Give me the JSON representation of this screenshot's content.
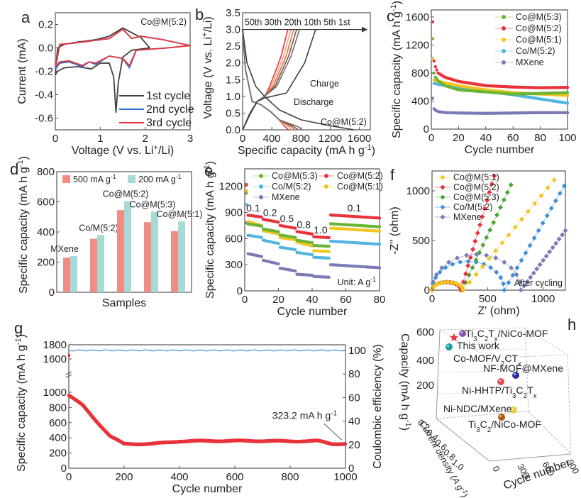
{
  "chart_data": [
    {
      "panel": "a",
      "type": "line",
      "annotation": "Co@M(5:2)",
      "xlabel": "Voltage (V vs. Li+/Li)",
      "ylabel": "Current (mA)",
      "xlim": [
        0,
        3
      ],
      "ylim": [
        -0.7,
        0.3
      ],
      "xticks": [
        "0",
        "1",
        "2",
        "3"
      ],
      "yticks": [
        "0.2",
        "0.0",
        "-0.2",
        "-0.4",
        "-0.6"
      ],
      "series": [
        {
          "name": "1st cycle",
          "color": "#404040",
          "x": [
            0.0,
            0.05,
            0.2,
            0.5,
            0.8,
            1.0,
            1.2,
            1.3,
            1.35,
            1.4,
            1.5,
            1.7,
            2.1,
            2.1,
            1.9,
            1.5,
            1.2,
            0.9,
            0.5,
            0.2,
            0.05,
            0.0
          ],
          "y": [
            -0.23,
            -0.2,
            -0.17,
            -0.16,
            -0.18,
            -0.13,
            -0.13,
            -0.25,
            -0.55,
            -0.3,
            -0.08,
            -0.02,
            0.0,
            0.0,
            0.09,
            0.17,
            0.1,
            0.07,
            0.05,
            0.03,
            0.0,
            -0.23
          ]
        },
        {
          "name": "2nd cycle",
          "color": "#2f6fc9",
          "x": [
            0.0,
            0.1,
            0.3,
            0.6,
            0.75,
            0.9,
            1.2,
            1.5,
            1.65,
            1.8,
            2.5,
            3.0,
            2.4,
            1.9,
            1.7,
            1.5,
            1.2,
            0.8,
            0.4,
            0.1,
            0.0
          ],
          "y": [
            -0.18,
            -0.13,
            -0.12,
            -0.16,
            -0.12,
            -0.14,
            -0.07,
            -0.09,
            -0.17,
            -0.02,
            0.0,
            0.02,
            0.07,
            0.1,
            0.08,
            0.16,
            0.08,
            0.06,
            0.04,
            0.03,
            -0.18
          ]
        },
        {
          "name": "3rd cycle",
          "color": "#e8333a",
          "x": [
            0.0,
            0.1,
            0.3,
            0.6,
            0.75,
            0.9,
            1.2,
            1.5,
            1.65,
            1.8,
            2.5,
            3.0,
            2.4,
            1.9,
            1.7,
            1.5,
            1.2,
            0.8,
            0.4,
            0.1,
            0.0
          ],
          "y": [
            -0.16,
            -0.12,
            -0.11,
            -0.15,
            -0.12,
            -0.13,
            -0.07,
            -0.09,
            -0.15,
            -0.02,
            0.0,
            0.02,
            0.07,
            0.1,
            0.08,
            0.16,
            0.08,
            0.06,
            0.04,
            0.03,
            -0.16
          ]
        }
      ],
      "legend": "bottom-right"
    },
    {
      "panel": "b",
      "type": "line",
      "annotation": "Co@M(5:2)",
      "arrow_label": "50th 30th 20th 10th 5th 1st",
      "charge_label": "Charge",
      "discharge_label": "Discharge",
      "xlabel": "Specific capacity (mA h g-1)",
      "ylabel": "Voltage (V vs. Li+/Li)",
      "xlim": [
        0,
        1750
      ],
      "ylim": [
        0,
        3.5
      ],
      "xticks": [
        "0",
        "400",
        "800",
        "1200",
        "1600"
      ],
      "yticks": [
        "0.0",
        "0.5",
        "1.0",
        "1.5",
        "2.0",
        "2.5",
        "3.0",
        "3.5"
      ],
      "series": [
        {
          "name": "1st",
          "color": "#404040",
          "discharge_cap": 1530,
          "charge_cap": 1000
        },
        {
          "name": "5th",
          "color": "#707070",
          "discharge_cap": 820,
          "charge_cap": 780
        },
        {
          "name": "10th",
          "color": "#8a4a4a",
          "discharge_cap": 760,
          "charge_cap": 740
        },
        {
          "name": "20th",
          "color": "#c87a3a",
          "discharge_cap": 720,
          "charge_cap": 700
        },
        {
          "name": "30th",
          "color": "#f0a080",
          "discharge_cap": 680,
          "charge_cap": 660
        },
        {
          "name": "50th",
          "color": "#e8333a",
          "discharge_cap": 630,
          "charge_cap": 620
        }
      ]
    },
    {
      "panel": "c",
      "type": "scatter",
      "xlabel": "Cycle number",
      "ylabel": "Specific capacity (mA h g-1)",
      "xlim": [
        0,
        100
      ],
      "ylim": [
        0,
        1700
      ],
      "xticks": [
        "0",
        "20",
        "40",
        "60",
        "80",
        "100"
      ],
      "yticks": [
        "0",
        "400",
        "800",
        "1200",
        "1600"
      ],
      "legend": "top-right",
      "series": [
        {
          "name": "Co@M(5:3)",
          "color": "#6bb536",
          "x": [
            1,
            2,
            3,
            5,
            10,
            20,
            40,
            60,
            80,
            100
          ],
          "y": [
            1290,
            800,
            740,
            690,
            620,
            560,
            530,
            500,
            510,
            520
          ]
        },
        {
          "name": "Co@M(5:2)",
          "color": "#e8333a",
          "x": [
            1,
            2,
            3,
            5,
            10,
            20,
            40,
            60,
            80,
            100
          ],
          "y": [
            1530,
            970,
            890,
            800,
            740,
            680,
            620,
            600,
            590,
            595
          ]
        },
        {
          "name": "Co@M(5:1)",
          "color": "#f2c521",
          "x": [
            1,
            2,
            3,
            5,
            10,
            20,
            40,
            60,
            80,
            100
          ],
          "y": [
            1000,
            700,
            690,
            680,
            660,
            620,
            560,
            520,
            500,
            480
          ]
        },
        {
          "name": "Co/M(5:2)",
          "color": "#53b5e0",
          "x": [
            1,
            2,
            3,
            5,
            10,
            20,
            40,
            60,
            80,
            100
          ],
          "y": [
            1010,
            650,
            650,
            640,
            620,
            580,
            540,
            490,
            430,
            370
          ]
        },
        {
          "name": "MXene",
          "color": "#7a7ab5",
          "x": [
            1,
            2,
            3,
            5,
            10,
            20,
            40,
            60,
            80,
            100
          ],
          "y": [
            440,
            290,
            270,
            250,
            235,
            230,
            225,
            230,
            235,
            235
          ]
        }
      ]
    },
    {
      "panel": "d",
      "type": "bar",
      "xlabel": "Samples",
      "ylabel": "Specific capacity (mA h g-1)",
      "ylim": [
        0,
        800
      ],
      "yticks": [
        "0",
        "200",
        "400",
        "600",
        "800"
      ],
      "legend": "top",
      "categories": [
        "MXene",
        "Co/M(5:2)",
        "Co@M(5:2)",
        "Co@M(5:3)",
        "Co@M(5:1)"
      ],
      "series": [
        {
          "name": "500 mA g-1",
          "color": "#f28b82",
          "values": [
            230,
            355,
            545,
            465,
            405
          ]
        },
        {
          "name": "200 mA g-1",
          "color": "#a7dad7",
          "values": [
            240,
            380,
            605,
            535,
            470
          ]
        }
      ]
    },
    {
      "panel": "e",
      "type": "scatter",
      "xlabel": "Cycle number",
      "ylabel": "Specific capacity (mA h g-1)",
      "xlim": [
        0,
        80
      ],
      "ylim": [
        0,
        1400
      ],
      "xticks": [
        "0",
        "20",
        "40",
        "60",
        "80"
      ],
      "yticks": [
        "0",
        "300",
        "600",
        "900",
        "1200"
      ],
      "unit_label": "Unit: A g-1",
      "rate_labels": [
        "0.1",
        "0.2",
        "0.5",
        "0.8",
        "1.0",
        "0.1"
      ],
      "legend": "top",
      "series": [
        {
          "name": "Co@M(5:3)",
          "color": "#6bb536",
          "steps": [
            770,
            710,
            640,
            580,
            520,
            770
          ]
        },
        {
          "name": "Co@M(5:2)",
          "color": "#e8333a",
          "steps": [
            870,
            820,
            750,
            680,
            620,
            870
          ]
        },
        {
          "name": "Co/M(5:2)",
          "color": "#53b5e0",
          "steps": [
            640,
            580,
            500,
            440,
            385,
            570
          ]
        },
        {
          "name": "Co@M(5:1)",
          "color": "#f2c521",
          "steps": [
            800,
            690,
            610,
            560,
            460,
            720
          ]
        },
        {
          "name": "MXene",
          "color": "#7a7ab5",
          "steps": [
            430,
            350,
            260,
            190,
            165,
            300
          ]
        }
      ]
    },
    {
      "panel": "f",
      "type": "scatter",
      "xlabel": "Z' (ohm)",
      "ylabel": "-Z'' (ohm)",
      "xlim": [
        0,
        1200
      ],
      "ylim": [
        0,
        1200
      ],
      "xticks": [
        "0",
        "500",
        "1000"
      ],
      "yticks": [
        "0",
        "500",
        "1000"
      ],
      "annotation": "After cycling",
      "legend": "top-left",
      "series": [
        {
          "name": "Co@M(5:1)",
          "color": "#f2c521",
          "semicircle_end": 280,
          "tail_slope_end": [
            1100,
            1110
          ]
        },
        {
          "name": "Co@M(5:2)",
          "color": "#e8333a",
          "semicircle_end": 260,
          "tail_slope_end": [
            560,
            1150
          ]
        },
        {
          "name": "Co@M(5:3)",
          "color": "#4aa436",
          "semicircle_end": 270,
          "tail_slope_end": [
            710,
            1060
          ]
        },
        {
          "name": "Co/M(5:2)",
          "color": "#3d8fdb",
          "semicircle_end": 650,
          "tail_slope_end": [
            1190,
            1050
          ]
        },
        {
          "name": "MXene",
          "color": "#7a7ab5",
          "semicircle_end": 800,
          "tail_slope_end": [
            1200,
            600
          ]
        }
      ]
    },
    {
      "panel": "g",
      "type": "scatter",
      "xlabel": "Cycle number",
      "ylabel": "Specific capacity (mA h g-1)",
      "y2label": "Coulombic efficiency (%)",
      "xlim": [
        0,
        1000
      ],
      "xticks": [
        "0",
        "200",
        "400",
        "600",
        "800",
        "1000"
      ],
      "yticks": [
        "0",
        "200",
        "400",
        "600",
        "800",
        "1000",
        "1600",
        "1800"
      ],
      "y2ticks": [
        "0",
        "20",
        "40",
        "60",
        "80",
        "100"
      ],
      "annotation": "323.2 mA h g-1",
      "series": [
        {
          "name": "Capacity",
          "color": "#e8333a",
          "x": [
            0,
            50,
            100,
            150,
            200,
            300,
            400,
            500,
            600,
            700,
            800,
            900,
            950,
            1000
          ],
          "y": [
            960,
            830,
            620,
            420,
            320,
            320,
            355,
            360,
            360,
            360,
            355,
            360,
            320,
            323.2
          ]
        },
        {
          "name": "Coulombic efficiency",
          "color": "#3d8fdb",
          "x": [
            0,
            1000
          ],
          "y": [
            100,
            100
          ]
        }
      ]
    },
    {
      "panel": "h",
      "type": "scatter",
      "xlabel": "Cycle number",
      "ylabel": "Capacity (mA h g-1)",
      "zlabel": "Current density (A g-1)",
      "zticks": [
        "0.2",
        "0.4",
        "0.6",
        "0.8",
        "1.0"
      ],
      "xticks": [
        "0",
        "300",
        "600",
        "900"
      ],
      "yticks": [
        "200",
        "400",
        "600"
      ],
      "points": [
        {
          "label": "Ti3C2Tx/NiCo-MOF",
          "color": "#8a4fb5",
          "capacity": 600
        },
        {
          "label": "This work",
          "color": "#e8333a",
          "capacity": 580,
          "marker": "star"
        },
        {
          "label": "Co-MOF/V2CTx",
          "color": "#1aa0a0",
          "capacity": 500
        },
        {
          "label": "NF-MOF@MXene",
          "color": "#2a2fa0",
          "capacity": 300
        },
        {
          "label": "Ni-HHTP/Ti3C2Tx",
          "color": "#e0505a",
          "capacity": 260
        },
        {
          "label": "Ni-NDC/MXene",
          "color": "#e0d040",
          "capacity": 150
        },
        {
          "label": "Ti3C2/NiCo-MOF",
          "color": "#b05a10",
          "capacity": 80
        }
      ]
    }
  ]
}
